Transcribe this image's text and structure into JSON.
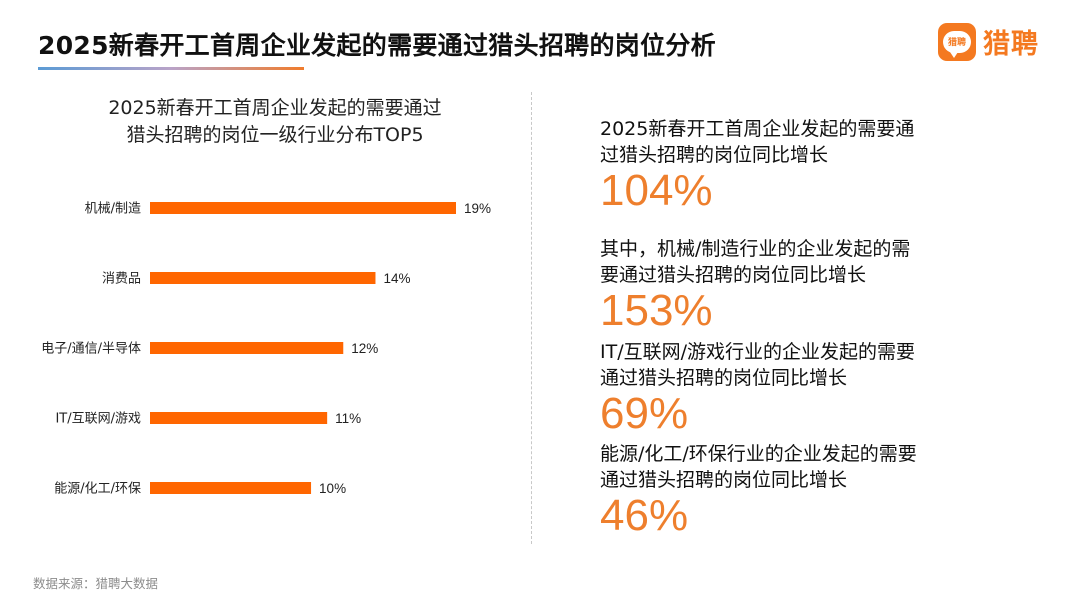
{
  "header": {
    "title": "2025新春开工首周企业发起的需要通过猎头招聘的岗位分析",
    "logo_badge_text": "猎聘",
    "logo_text": "猎聘"
  },
  "chart_data": {
    "type": "bar",
    "orientation": "horizontal",
    "title": "2025新春开工首周企业发起的需要通过猎头招聘的岗位一级行业分布TOP5",
    "title_lines": [
      "2025新春开工首周企业发起的需要通过",
      "猎头招聘的岗位一级行业分布TOP5"
    ],
    "categories": [
      "机械/制造",
      "消费品",
      "电子/通信/半导体",
      "IT/互联网/游戏",
      "能源/化工/环保"
    ],
    "values": [
      19,
      14,
      12,
      11,
      10
    ],
    "value_labels": [
      "19%",
      "14%",
      "12%",
      "11%",
      "10%"
    ],
    "unit": "%",
    "xlabel": "",
    "ylabel": "",
    "grid": false,
    "bar_color": "#ff6600"
  },
  "stats": [
    {
      "label_lines": [
        "2025新春开工首周企业发起的需要通",
        "过猎头招聘的岗位同比增长"
      ],
      "value": "104%"
    },
    {
      "label_lines": [
        "其中，机械/制造行业的企业发起的需",
        "要通过猎头招聘的岗位同比增长"
      ],
      "value": "153%"
    },
    {
      "label_lines": [
        "IT/互联网/游戏行业的企业发起的需要",
        "通过猎头招聘的岗位同比增长"
      ],
      "value": "69%"
    },
    {
      "label_lines": [
        "能源/化工/环保行业的企业发起的需要",
        "通过猎头招聘的岗位同比增长"
      ],
      "value": "46%"
    }
  ],
  "footer": {
    "source": "数据来源：猎聘大数据"
  },
  "colors": {
    "accent": "#ee7f2d",
    "brand": "#f47920",
    "bar": "#ff6600"
  }
}
